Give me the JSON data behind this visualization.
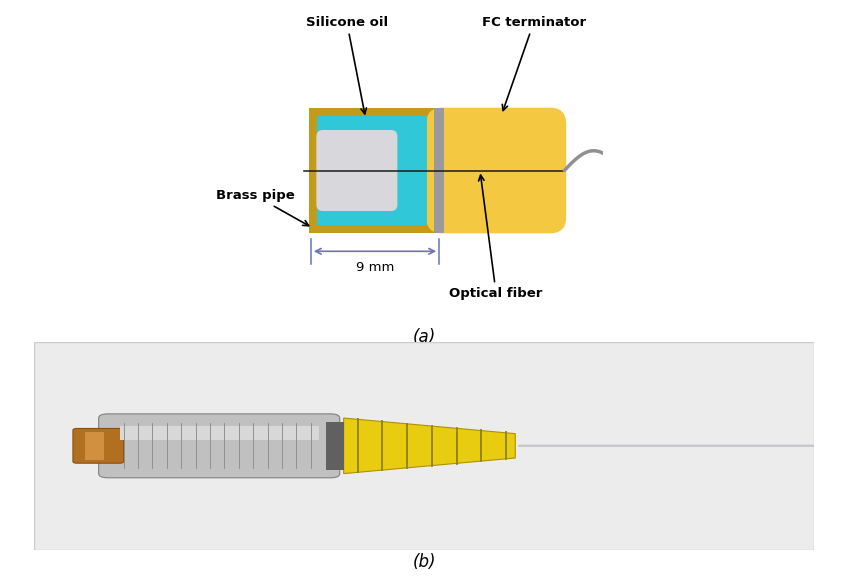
{
  "fig_width": 8.48,
  "fig_height": 5.79,
  "dpi": 100,
  "bg_color": "#ffffff",
  "panel_a_label": "(a)",
  "panel_b_label": "(b)",
  "colors": {
    "brass": "#c49a1a",
    "silicone_oil": "#30c8d8",
    "gray_plug": "#9a9a9a",
    "white_center": "#d8d8dc",
    "yellow_body": "#f5c842",
    "fiber_line": "#1a1a1a",
    "dim_arrow": "#7070bb",
    "text_color": "#000000",
    "photo_bg": "#e8e8e8",
    "metal_silver": "#b8b8b8",
    "metal_dark": "#888888",
    "brass_ferrule": "#b07828",
    "yellow_boot": "#e8cc10"
  },
  "labels": {
    "silicone_oil": "Silicone oil",
    "fc_terminator": "FC terminator",
    "brass_pipe": "Brass pipe",
    "optical_fiber": "Optical fiber",
    "dimension": "9 mm"
  }
}
